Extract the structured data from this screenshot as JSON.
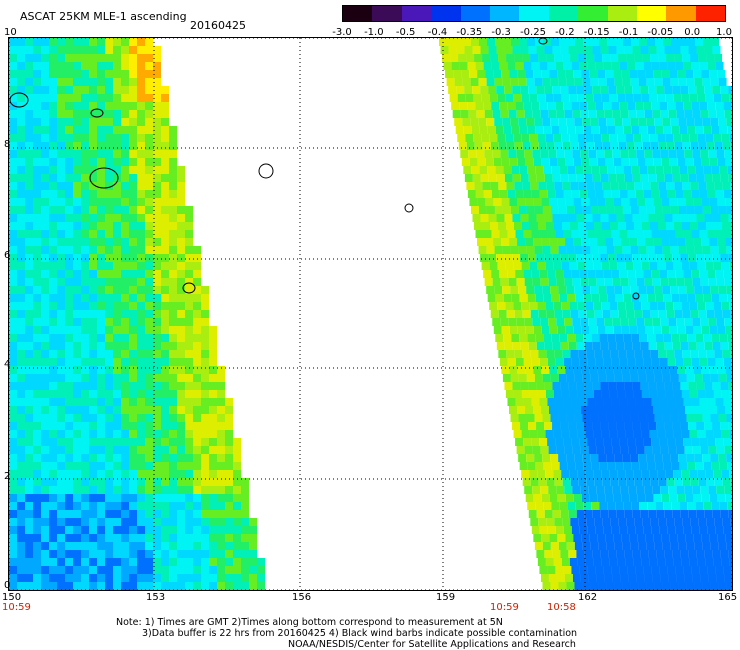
{
  "header": {
    "title": "ASCAT 25KM MLE-1 ascending",
    "date": "20160425"
  },
  "colorbar": {
    "labels": [
      "-3.0",
      "-1.0",
      "-0.5",
      "-0.4",
      "-0.35",
      "-0.3",
      "-0.25",
      "-0.2",
      "-0.15",
      "-0.1",
      "-0.05",
      "0.0",
      "1.0"
    ],
    "colors": [
      "#1a0010",
      "#3b0b57",
      "#4a18b8",
      "#0033ee",
      "#0070ff",
      "#00b6ff",
      "#00f4f4",
      "#00f0a8",
      "#33ee33",
      "#aaee11",
      "#ffff00",
      "#ff9900",
      "#ff2200"
    ]
  },
  "axes": {
    "lat_labels": [
      "10",
      "8",
      "6",
      "4",
      "2",
      "0"
    ],
    "lon_labels": [
      "150",
      "153",
      "156",
      "159",
      "162",
      "165"
    ]
  },
  "times": {
    "left": "10:59",
    "mid1": "10:59",
    "mid2": "10:58"
  },
  "notes": {
    "line1": "Note: 1) Times are GMT 2)Times along bottom correspond to measurement at 5N",
    "line2": "3)Data buffer is 22 hrs from 20160425 4) Black wind barbs indicate possible contamination",
    "line3": "NOAA/NESDIS/Center for Satellite Applications and Research"
  }
}
